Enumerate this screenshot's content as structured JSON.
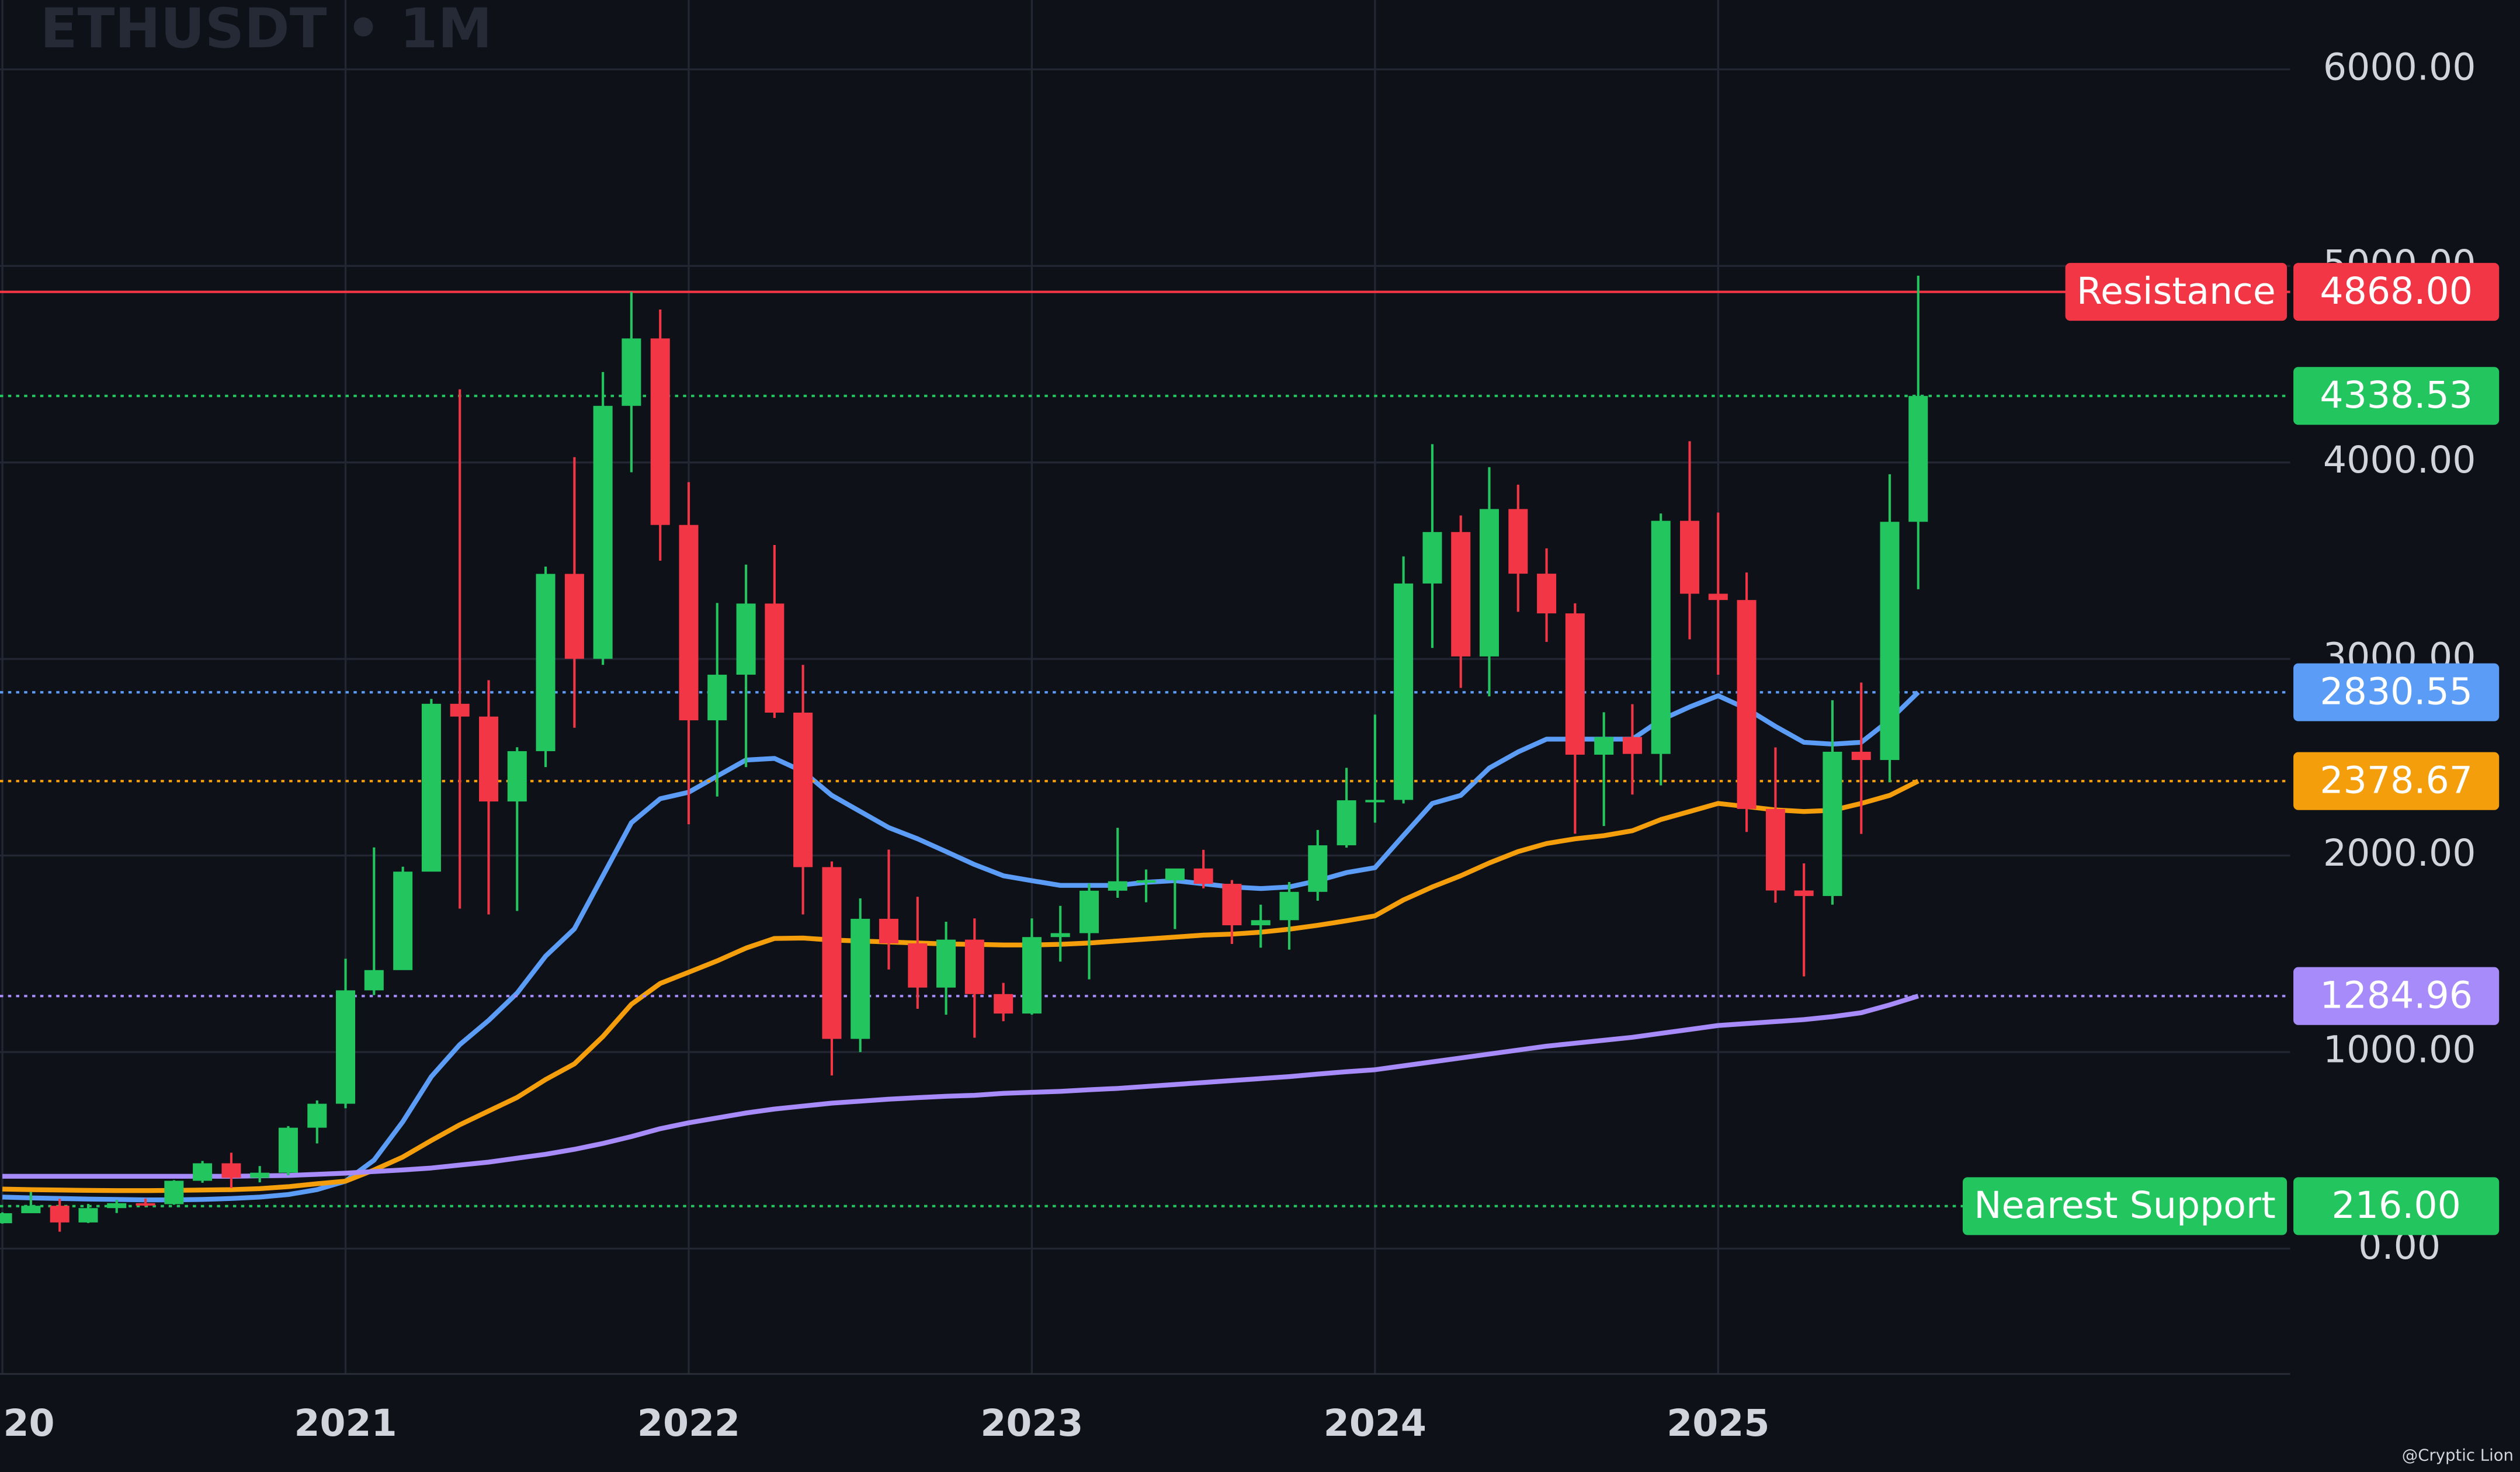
{
  "chart_data": {
    "type": "candlestick",
    "title": "ETHUSDT • 1M",
    "watermark": "@Cryptic Lion",
    "x": [
      2020,
      2020.083,
      2020.167,
      2020.25,
      2020.333,
      2020.417,
      2020.5,
      2020.583,
      2020.667,
      2020.75,
      2020.833,
      2020.917,
      2021,
      2021.083,
      2021.167,
      2021.25,
      2021.333,
      2021.417,
      2021.5,
      2021.583,
      2021.667,
      2021.75,
      2021.833,
      2021.917,
      2022,
      2022.083,
      2022.167,
      2022.25,
      2022.333,
      2022.417,
      2022.5,
      2022.583,
      2022.667,
      2022.75,
      2022.833,
      2022.917,
      2023,
      2023.083,
      2023.167,
      2023.25,
      2023.333,
      2023.417,
      2023.5,
      2023.583,
      2023.667,
      2023.75,
      2023.833,
      2023.917,
      2024,
      2024.083,
      2024.167,
      2024.25,
      2024.333,
      2024.417,
      2024.5,
      2024.583,
      2024.667,
      2024.75,
      2024.833,
      2024.917,
      2025,
      2025.083,
      2025.167,
      2025.25,
      2025.333,
      2025.417,
      2025.5,
      2025.583
    ],
    "open": [
      129,
      180,
      218,
      133,
      206,
      231,
      226,
      345,
      434,
      360,
      386,
      615,
      737,
      1314,
      1417,
      1918,
      2772,
      2707,
      2275,
      2531,
      3433,
      3001,
      4288,
      4631,
      3682,
      2688,
      2920,
      3282,
      2727,
      1941,
      1067,
      1678,
      1553,
      1328,
      1572,
      1295,
      1196,
      1585,
      1605,
      1821,
      1869,
      1874,
      1934,
      1856,
      1645,
      1671,
      1815,
      2052,
      2281,
      2283,
      3384,
      3646,
      3013,
      3763,
      3434,
      3232,
      2513,
      2603,
      2517,
      3703,
      3332,
      3300,
      2237,
      1822,
      1794,
      2528,
      2486,
      3698
    ],
    "high": [
      184,
      288,
      253,
      227,
      248,
      255,
      348,
      446,
      488,
      420,
      623,
      754,
      1475,
      2041,
      1943,
      2797,
      4372,
      2892,
      2551,
      3470,
      4027,
      4460,
      4868,
      4778,
      3900,
      3285,
      3480,
      3580,
      2970,
      1970,
      1782,
      2030,
      1790,
      1663,
      1680,
      1352,
      1680,
      1744,
      1857,
      2141,
      1929,
      1931,
      2029,
      1875,
      1750,
      1865,
      2130,
      2446,
      2717,
      3522,
      4093,
      3730,
      3976,
      3887,
      3563,
      3283,
      2729,
      2770,
      3740,
      4108,
      3745,
      3440,
      2550,
      1960,
      2790,
      2880,
      3940,
      4950
    ],
    "low": [
      127,
      180,
      86,
      130,
      181,
      215,
      223,
      335,
      308,
      337,
      373,
      535,
      714,
      1290,
      1433,
      1932,
      1730,
      1700,
      1718,
      2450,
      2650,
      2970,
      3950,
      3500,
      2159,
      2300,
      2450,
      2700,
      1700,
      881,
      1000,
      1420,
      1220,
      1190,
      1073,
      1157,
      1190,
      1460,
      1370,
      1785,
      1762,
      1626,
      1833,
      1550,
      1531,
      1521,
      1770,
      2040,
      2167,
      2265,
      3056,
      2853,
      2810,
      3240,
      3087,
      2111,
      2150,
      2310,
      2357,
      3100,
      2920,
      2120,
      1760,
      1385,
      1750,
      2110,
      2373,
      3355
    ],
    "close": [
      180,
      218,
      133,
      206,
      231,
      226,
      345,
      434,
      360,
      386,
      615,
      737,
      1314,
      1417,
      1918,
      2772,
      2707,
      2275,
      2531,
      3433,
      3001,
      4288,
      4631,
      3682,
      2688,
      2920,
      3282,
      2727,
      1941,
      1067,
      1678,
      1553,
      1328,
      1572,
      1295,
      1196,
      1585,
      1605,
      1821,
      1869,
      1874,
      1934,
      1856,
      1645,
      1671,
      1815,
      2052,
      2281,
      2283,
      3384,
      3646,
      3013,
      3763,
      3434,
      3232,
      2513,
      2603,
      2517,
      3703,
      3332,
      3300,
      2237,
      1822,
      1794,
      2528,
      2486,
      3698,
      4338.53
    ],
    "up_color": "#22c55e",
    "down_color": "#f23645",
    "lines": [
      {
        "color": "#5b9cf6",
        "values": [
          262,
          258,
          255,
          252,
          250,
          248,
          248,
          250,
          255,
          262,
          275,
          300,
          343,
          450,
          646,
          875,
          1038,
          1161,
          1300,
          1488,
          1627,
          1897,
          2167,
          2289,
          2322,
          2404,
          2486,
          2494,
          2428,
          2306,
          2224,
          2142,
          2085,
          2020,
          1954,
          1897,
          1872,
          1848,
          1848,
          1848,
          1864,
          1872,
          1856,
          1840,
          1832,
          1840,
          1872,
          1913,
          1938,
          2102,
          2265,
          2306,
          2445,
          2527,
          2592,
          2592,
          2592,
          2592,
          2690,
          2756,
          2813,
          2747,
          2657,
          2576,
          2567,
          2576,
          2690,
          2830.55
        ]
      },
      {
        "color": "#f59e0b",
        "values": [
          303,
          300,
          298,
          296,
          295,
          295,
          296,
          298,
          300,
          305,
          315,
          330,
          343,
          400,
          466,
          550,
          630,
          700,
          769,
          860,
          940,
          1079,
          1243,
          1349,
          1406,
          1464,
          1529,
          1578,
          1580,
          1570,
          1565,
          1560,
          1555,
          1550,
          1548,
          1545,
          1545,
          1548,
          1555,
          1565,
          1575,
          1585,
          1595,
          1600,
          1610,
          1625,
          1645,
          1668,
          1693,
          1774,
          1840,
          1897,
          1962,
          2020,
          2061,
          2085,
          2101,
          2126,
          2183,
          2224,
          2265,
          2249,
          2232,
          2224,
          2230,
          2265,
          2306,
          2378.67
        ]
      },
      {
        "color": "#a78bfa",
        "values": [
          368,
          368,
          368,
          368,
          368,
          368,
          368,
          368,
          368,
          370,
          372,
          378,
          384,
          392,
          400,
          410,
          425,
          440,
          460,
          480,
          505,
          535,
          570,
          610,
          640,
          665,
          690,
          710,
          725,
          740,
          750,
          760,
          768,
          775,
          780,
          790,
          795,
          800,
          808,
          815,
          825,
          835,
          845,
          855,
          865,
          875,
          888,
          900,
          910,
          930,
          950,
          970,
          990,
          1010,
          1030,
          1045,
          1060,
          1075,
          1095,
          1115,
          1135,
          1145,
          1155,
          1165,
          1180,
          1200,
          1240,
          1284.96
        ]
      }
    ],
    "levels": [
      {
        "value": 4868,
        "value_label": "4868.00",
        "label": "Resistance",
        "color": "#f23645",
        "dashed": false
      },
      {
        "value": 4338.53,
        "value_label": "4338.53",
        "color": "#22c55e",
        "dashed": true
      },
      {
        "value": 2830.55,
        "value_label": "2830.55",
        "color": "#5b9cf6",
        "dashed": true
      },
      {
        "value": 2378.67,
        "value_label": "2378.67",
        "color": "#f59e0b",
        "dashed": true
      },
      {
        "value": 1284.96,
        "value_label": "1284.96",
        "color": "#a78bfa",
        "dashed": true
      },
      {
        "value": 216,
        "value_label": "216.00",
        "label": "Nearest Support",
        "color": "#22c55e",
        "dashed": true
      }
    ],
    "xlim": [
      2019.993,
      2026.667
    ],
    "xticks": [
      {
        "value": 2020,
        "label": "20"
      },
      2021,
      2022,
      2023,
      2024,
      2025
    ],
    "ylim": [
      -638,
      6353
    ],
    "yticks": [
      {
        "value": 0,
        "label": "0.00"
      },
      {
        "value": 1000,
        "label": "1000.00"
      },
      {
        "value": 2000,
        "label": "2000.00"
      },
      {
        "value": 3000,
        "label": "3000.00"
      },
      {
        "value": 4000,
        "label": "4000.00"
      },
      {
        "value": 5000,
        "label": "5000.00"
      },
      {
        "value": 6000,
        "label": "6000.00"
      }
    ],
    "grid": true
  }
}
